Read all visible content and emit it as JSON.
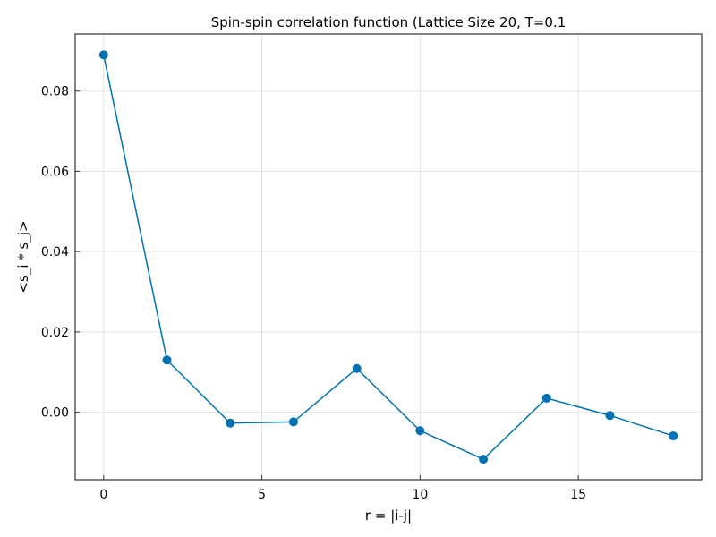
{
  "chart_data": {
    "type": "line",
    "title": "Spin-spin correlation function (Lattice Size 20, T=0.1",
    "xlabel": "r = |i-j|",
    "ylabel": "<s_i * s_j>",
    "xlim": [
      -0.9,
      18.9
    ],
    "ylim": [
      -0.0168,
      0.0942
    ],
    "xticks": [
      0,
      5,
      10,
      15
    ],
    "xtick_labels": [
      "0",
      "5",
      "10",
      "15"
    ],
    "yticks": [
      0.0,
      0.02,
      0.04,
      0.06,
      0.08
    ],
    "ytick_labels": [
      "0.00",
      "0.02",
      "0.04",
      "0.06",
      "0.08"
    ],
    "grid": true,
    "series": [
      {
        "color": "#0072b2",
        "markers": true,
        "x": [
          0,
          2,
          4,
          6,
          8,
          10,
          12,
          14,
          16,
          18
        ],
        "y": [
          0.089,
          0.013,
          -0.0027,
          -0.0024,
          0.0109,
          -0.0046,
          -0.0117,
          0.0035,
          -0.0008,
          -0.0059
        ]
      }
    ]
  }
}
